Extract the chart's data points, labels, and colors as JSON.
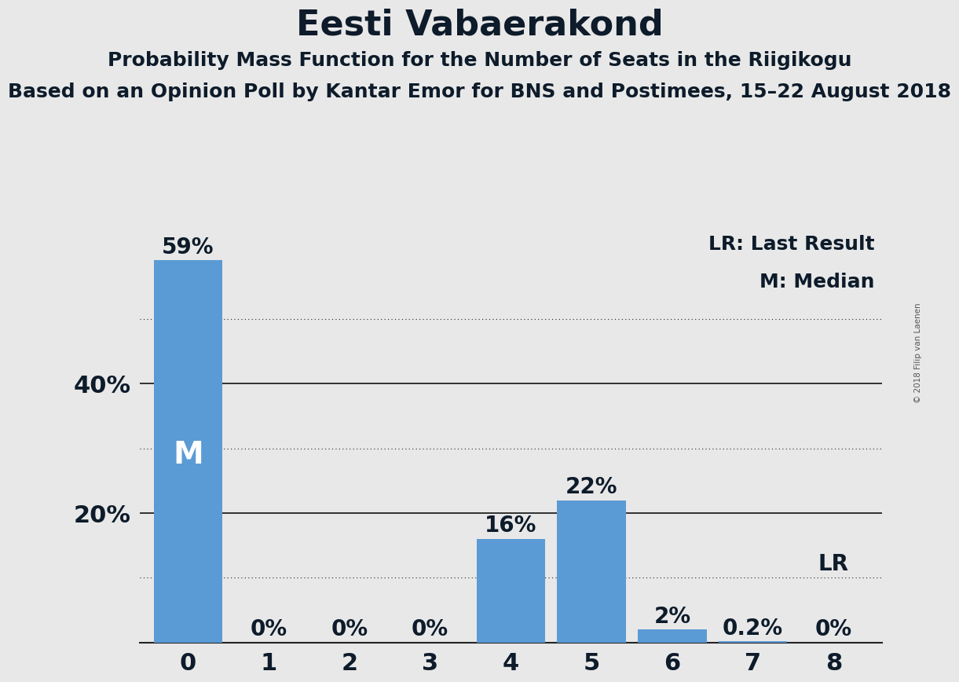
{
  "title": "Eesti Vabaerakond",
  "subtitle1": "Probability Mass Function for the Number of Seats in the Riigikogu",
  "subtitle2": "Based on an Opinion Poll by Kantar Emor for BNS and Postimees, 15–22 August 2018",
  "copyright": "© 2018 Filip van Laenen",
  "categories": [
    0,
    1,
    2,
    3,
    4,
    5,
    6,
    7,
    8
  ],
  "values": [
    59,
    0,
    0,
    0,
    16,
    22,
    2,
    0.2,
    0
  ],
  "bar_color": "#5b9bd5",
  "background_color": "#e8e8e8",
  "ytick_labeled": [
    20,
    40
  ],
  "ytick_labeled_labels": [
    "20%",
    "40%"
  ],
  "major_grid_values": [
    20,
    40
  ],
  "minor_grid_values": [
    10,
    30,
    50
  ],
  "bar_labels": [
    "59%",
    "0%",
    "0%",
    "0%",
    "16%",
    "22%",
    "2%",
    "0.2%",
    "0%"
  ],
  "median_bar": 0,
  "lr_bar": 8,
  "legend_lr": "LR: Last Result",
  "legend_m": "M: Median",
  "lr_label": "LR",
  "m_label": "M",
  "title_fontsize": 32,
  "subtitle_fontsize": 18,
  "axis_tick_fontsize": 22,
  "bar_label_fontsize": 20,
  "legend_fontsize": 18,
  "text_color": "#0d1b2a",
  "ylim_max": 65
}
